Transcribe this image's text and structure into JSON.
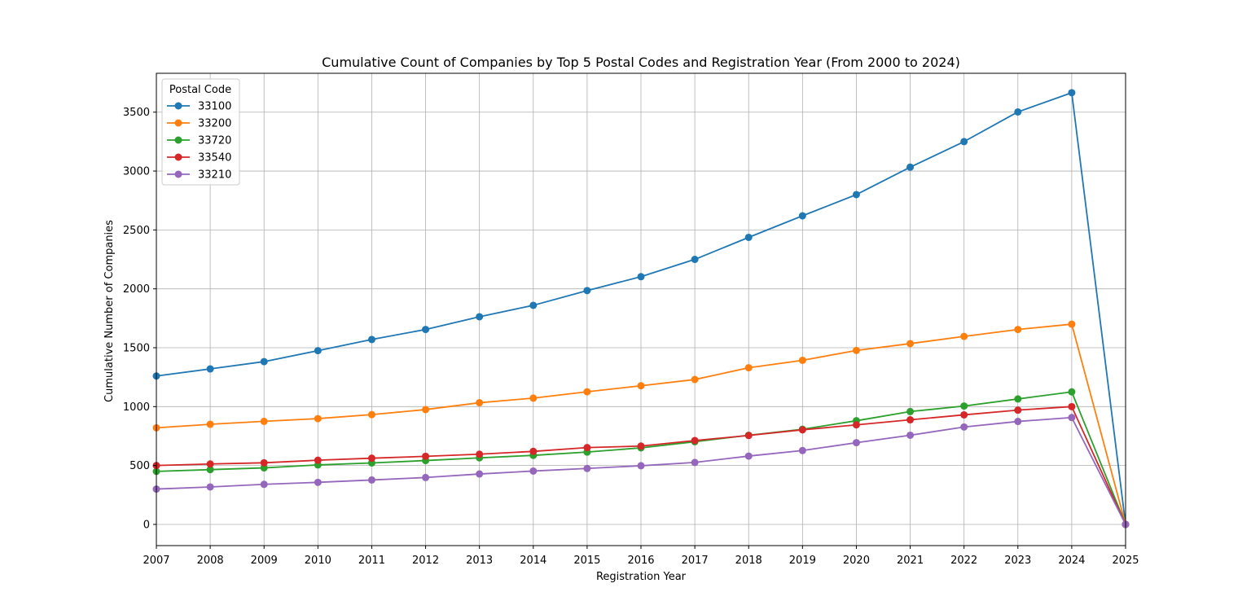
{
  "chart_data": {
    "type": "line",
    "title": "Cumulative Count of Companies by Top 5 Postal Codes and Registration Year (From 2000 to 2024)",
    "xlabel": "Registration Year",
    "ylabel": "Cumulative Number of Companies",
    "x": [
      2007,
      2008,
      2009,
      2010,
      2011,
      2012,
      2013,
      2014,
      2015,
      2016,
      2017,
      2018,
      2019,
      2020,
      2021,
      2022,
      2023,
      2024,
      2025
    ],
    "xlim": [
      2007,
      2025
    ],
    "ylim": [
      -180,
      3830
    ],
    "yticks": [
      0,
      500,
      1000,
      1500,
      2000,
      2500,
      3000,
      3500
    ],
    "grid": true,
    "legend": {
      "title": "Postal Code",
      "placement": "top-left"
    },
    "series": [
      {
        "name": "33100",
        "color": "#1f77b4",
        "values": [
          1260,
          1320,
          1382,
          1475,
          1570,
          1655,
          1763,
          1860,
          1985,
          2103,
          2250,
          2437,
          2620,
          2800,
          3033,
          3250,
          3502,
          3665,
          0
        ]
      },
      {
        "name": "33200",
        "color": "#ff7f0e",
        "values": [
          820,
          850,
          875,
          898,
          932,
          975,
          1033,
          1072,
          1126,
          1177,
          1230,
          1330,
          1393,
          1477,
          1535,
          1596,
          1655,
          1700,
          0
        ]
      },
      {
        "name": "33720",
        "color": "#2ca02c",
        "values": [
          450,
          465,
          480,
          505,
          522,
          542,
          565,
          586,
          614,
          650,
          702,
          757,
          808,
          880,
          958,
          1005,
          1065,
          1125,
          0
        ]
      },
      {
        "name": "33540",
        "color": "#d62728",
        "values": [
          500,
          513,
          523,
          545,
          562,
          578,
          596,
          620,
          652,
          665,
          712,
          755,
          803,
          845,
          888,
          930,
          970,
          1000,
          0
        ]
      },
      {
        "name": "33210",
        "color": "#9467bd",
        "values": [
          300,
          318,
          340,
          357,
          377,
          398,
          428,
          453,
          475,
          498,
          526,
          580,
          627,
          694,
          757,
          827,
          874,
          907,
          0
        ]
      }
    ]
  }
}
